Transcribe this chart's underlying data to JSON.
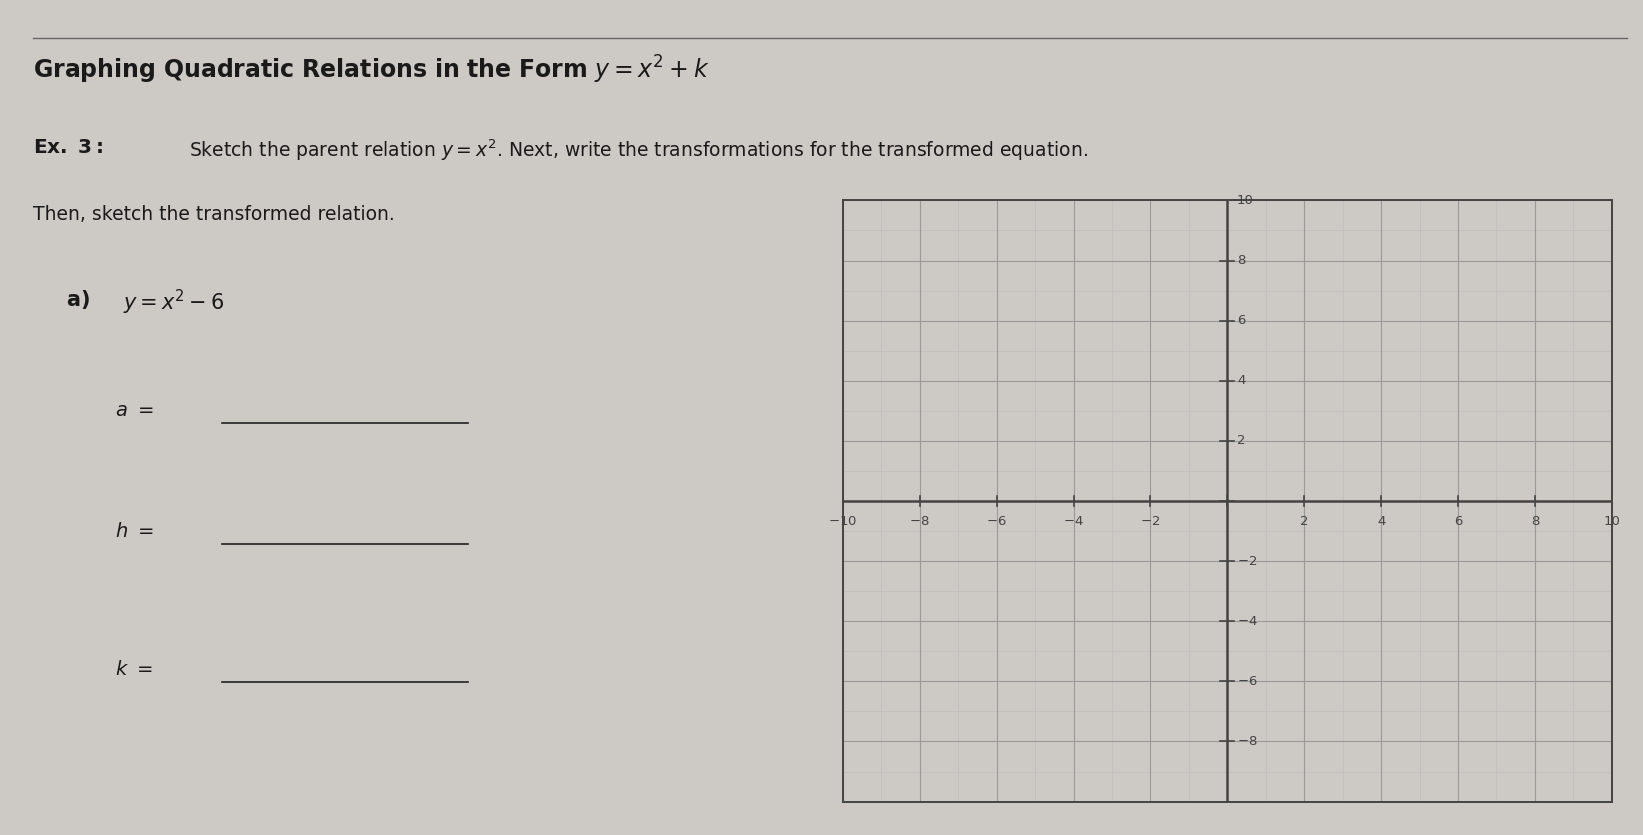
{
  "background_color": "#cdc9c5",
  "text_color": "#1a1a1a",
  "axis_color": "#444444",
  "grid_major_color": "#999999",
  "grid_minor_color": "#bbbbbb",
  "line_color": "#222222",
  "title_line_color": "#666666",
  "grid_xlim": [
    -10,
    10
  ],
  "grid_ylim": [
    -10,
    10
  ],
  "grid_xlabel_vals": [
    -10,
    -8,
    -6,
    -4,
    -2,
    2,
    4,
    6,
    8,
    10
  ],
  "grid_ylabel_vals": [
    -8,
    -6,
    -4,
    -2,
    2,
    4,
    6,
    8,
    10
  ]
}
